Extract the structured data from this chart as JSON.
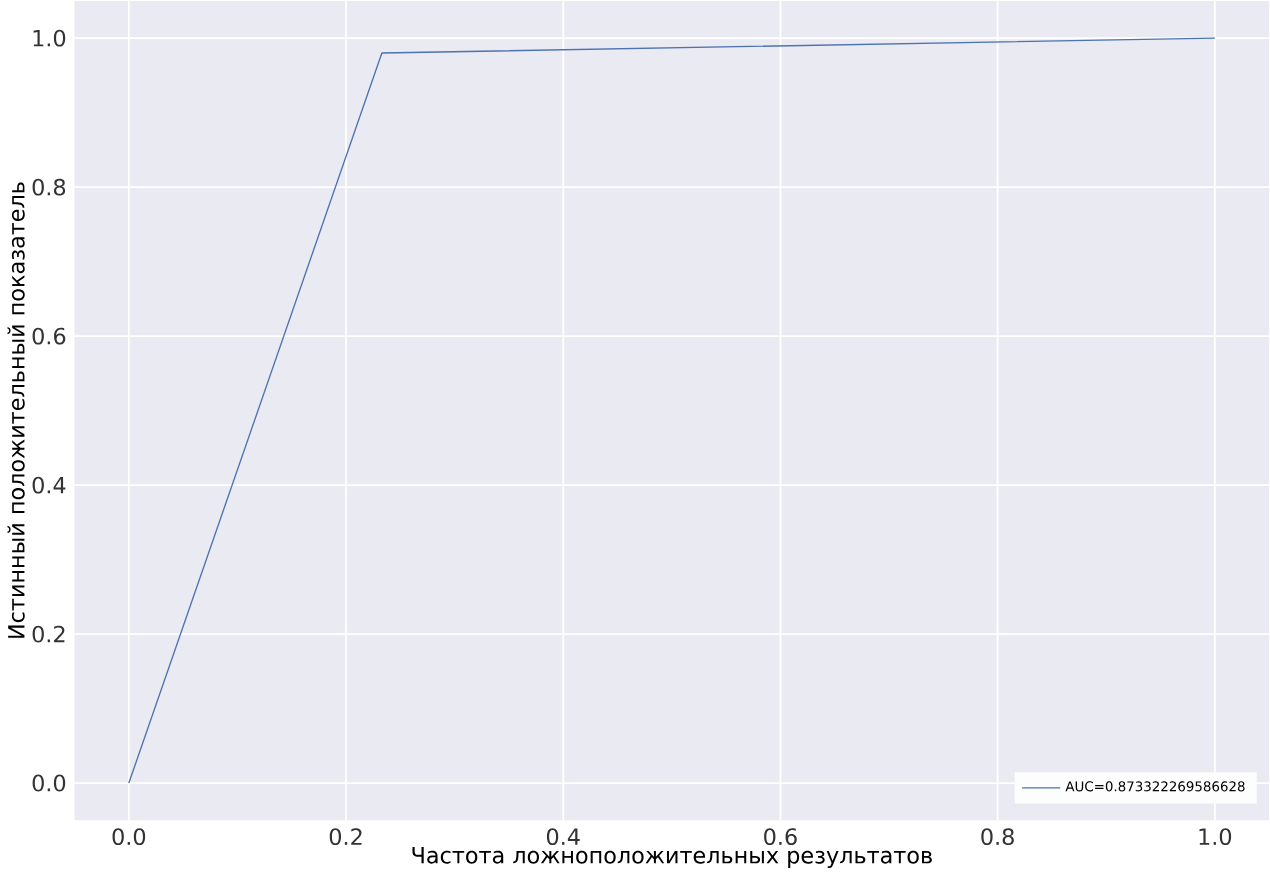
{
  "chart_data": {
    "type": "line",
    "xlabel": "Частота ложноположительных результатов",
    "ylabel": "Истинный положительный показатель",
    "x": [
      0,
      0.233,
      1
    ],
    "series": [
      {
        "name": "AUC=0.873322269586628",
        "color": "#4c72b0",
        "values": [
          0,
          0.98,
          1
        ]
      }
    ],
    "xlim": [
      -0.05,
      1.05
    ],
    "ylim": [
      -0.05,
      1.05
    ],
    "xticks": [
      {
        "value": 0,
        "label": "0.0"
      },
      {
        "value": 0.2,
        "label": "0.2"
      },
      {
        "value": 0.4,
        "label": "0.4"
      },
      {
        "value": 0.6,
        "label": "0.6"
      },
      {
        "value": 0.8,
        "label": "0.8"
      },
      {
        "value": 1,
        "label": "1.0"
      }
    ],
    "yticks": [
      {
        "value": 0,
        "label": "0.0"
      },
      {
        "value": 0.2,
        "label": "0.2"
      },
      {
        "value": 0.4,
        "label": "0.4"
      },
      {
        "value": 0.6,
        "label": "0.6"
      },
      {
        "value": 0.8,
        "label": "0.8"
      },
      {
        "value": 1,
        "label": "1.0"
      }
    ],
    "grid": true,
    "legend": "bottom right",
    "marker": "none",
    "line_style": "solid"
  }
}
